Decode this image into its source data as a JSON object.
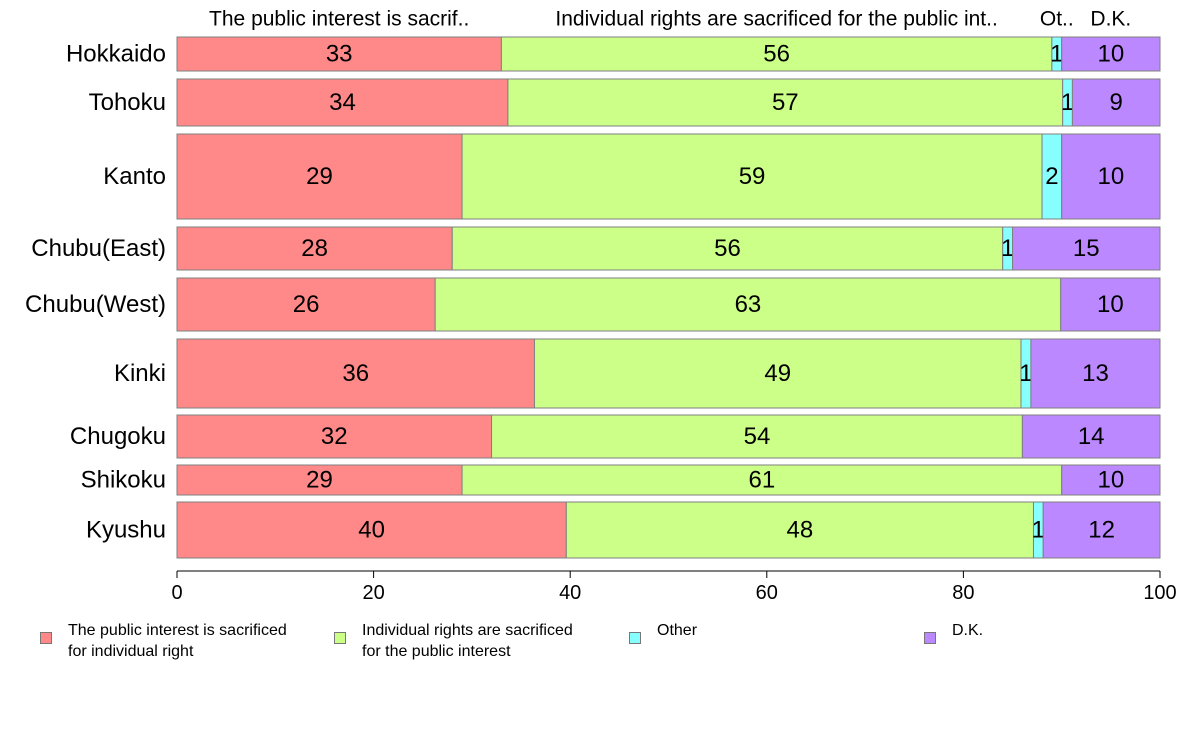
{
  "chart_data": {
    "type": "bar",
    "orientation": "horizontal",
    "stacked": true,
    "categories": [
      "Hokkaido",
      "Tohoku",
      "Kanto",
      "Chubu(East)",
      "Chubu(West)",
      "Kinki",
      "Chugoku",
      "Shikoku",
      "Kyushu"
    ],
    "series": [
      {
        "name": "The public interest is sacrificed for individual right",
        "values": [
          33,
          34,
          29,
          28,
          26,
          36,
          32,
          29,
          40
        ],
        "color": "#ff8888"
      },
      {
        "name": "Individual rights are sacrificed for the public interest",
        "values": [
          56,
          57,
          59,
          56,
          63,
          49,
          54,
          61,
          48
        ],
        "color": "#ccff88"
      },
      {
        "name": "Other",
        "values": [
          1,
          1,
          2,
          1,
          0,
          1,
          0,
          0,
          1
        ],
        "color": "#88ffff"
      },
      {
        "name": "D.K.",
        "values": [
          10,
          9,
          10,
          15,
          10,
          13,
          14,
          10,
          12
        ],
        "color": "#bb88ff"
      }
    ],
    "top_labels": [
      "The public interest is sacrif..",
      "Individual rights are sacrificed for the public int..",
      "Ot..",
      "D.K."
    ],
    "xlim": [
      0,
      100
    ],
    "xticks": [
      0,
      20,
      40,
      60,
      80,
      100
    ],
    "legend": {
      "position": "bottom",
      "labels": [
        "The public interest is sacrificed\nfor individual right",
        "Individual rights are sacrificed\nfor the public interest",
        "Other",
        "D.K."
      ]
    },
    "title": "",
    "xlabel": "",
    "ylabel": "",
    "grid": false
  }
}
